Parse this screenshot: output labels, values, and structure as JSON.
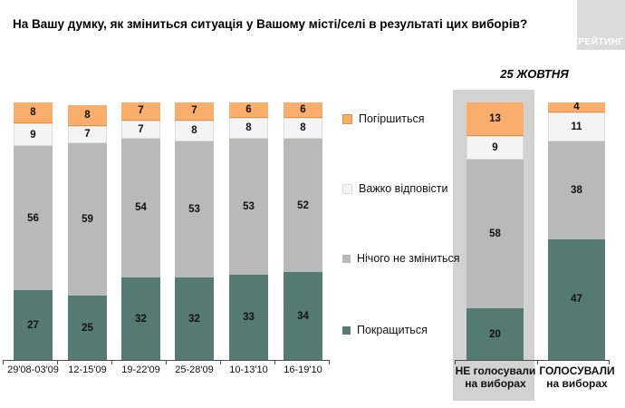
{
  "title": "На Вашу думку, як зміниться ситуація у Вашому місті/селі в результаті цих виборів?",
  "logo": {
    "text": "РЕЙТИНГ"
  },
  "colors": {
    "improve": "#557A71",
    "no_change": "#B9B9B9",
    "hard_to_say": "#F4F4F4",
    "worsen": "#F9AE6B",
    "worsen_border": "#E2933F",
    "hard_border": "#DCDCDC",
    "highlight_box": "#D2D2D2",
    "logo_bg": "#DBDBDB",
    "axis": "#4D4D4D"
  },
  "legend": {
    "items": [
      {
        "key": "worsen",
        "label": "Погіршиться"
      },
      {
        "key": "hard_to_say",
        "label": "Важко відповісти"
      },
      {
        "key": "no_change",
        "label": "Нічого не зміниться"
      },
      {
        "key": "improve",
        "label": "Покращиться"
      }
    ]
  },
  "chart_data": {
    "type": "bar",
    "stacked": true,
    "unit": "percent",
    "ylim": [
      0,
      100
    ],
    "segment_keys_bottom_to_top": [
      "improve",
      "no_change",
      "hard_to_say",
      "worsen"
    ],
    "segment_labels": {
      "improve": "Покращиться",
      "no_change": "Нічого не зміниться",
      "hard_to_say": "Важко відповісти",
      "worsen": "Погіршиться"
    },
    "groups": [
      {
        "name": "waves",
        "header": "",
        "bars": [
          {
            "category": "29'08-03'09",
            "values": {
              "improve": 27,
              "no_change": 56,
              "hard_to_say": 9,
              "worsen": 8
            }
          },
          {
            "category": "12-15'09",
            "values": {
              "improve": 25,
              "no_change": 59,
              "hard_to_say": 7,
              "worsen": 8
            }
          },
          {
            "category": "19-22'09",
            "values": {
              "improve": 32,
              "no_change": 54,
              "hard_to_say": 7,
              "worsen": 7
            }
          },
          {
            "category": "25-28'09",
            "values": {
              "improve": 32,
              "no_change": 53,
              "hard_to_say": 8,
              "worsen": 7
            }
          },
          {
            "category": "10-13'10",
            "values": {
              "improve": 33,
              "no_change": 53,
              "hard_to_say": 8,
              "worsen": 6
            }
          },
          {
            "category": "16-19'10",
            "values": {
              "improve": 34,
              "no_change": 52,
              "hard_to_say": 8,
              "worsen": 6
            }
          }
        ]
      },
      {
        "name": "october",
        "header": "25 ЖОВТНЯ",
        "bars": [
          {
            "category_line1": "НЕ голосували",
            "category_line2": "на виборах",
            "highlighted": true,
            "values": {
              "improve": 20,
              "no_change": 58,
              "hard_to_say": 9,
              "worsen": 13
            }
          },
          {
            "category_line1": "ГОЛОСУВАЛИ",
            "category_line2": "на виборах",
            "highlighted": false,
            "values": {
              "improve": 47,
              "no_change": 38,
              "hard_to_say": 11,
              "worsen": 4
            }
          }
        ]
      }
    ]
  }
}
